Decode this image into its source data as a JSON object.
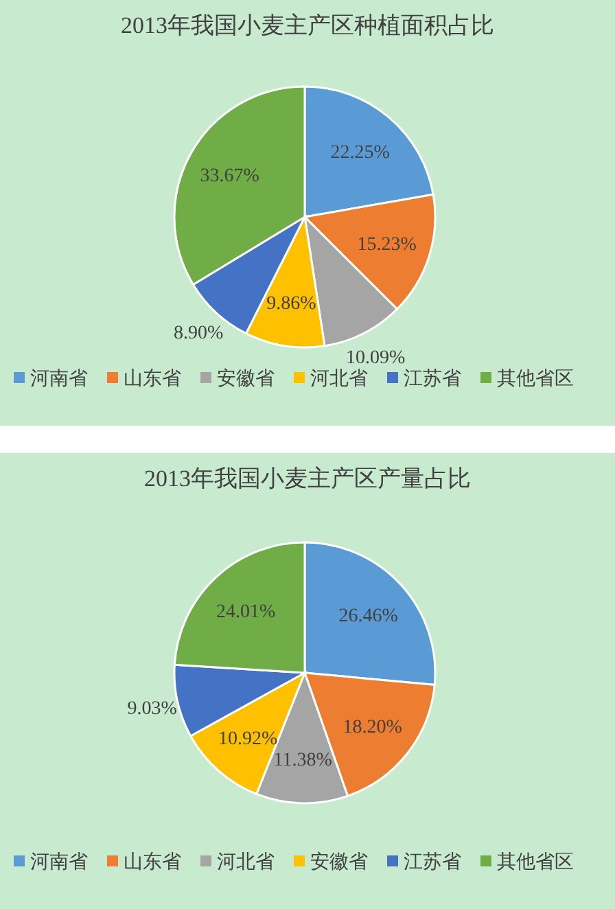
{
  "chart_data": [
    {
      "type": "pie",
      "title": "2013年我国小麦主产区种植面积占比",
      "categories": [
        "河南省",
        "山东省",
        "安徽省",
        "河北省",
        "江苏省",
        "其他省区"
      ],
      "values": [
        22.25,
        15.23,
        10.09,
        9.86,
        8.9,
        33.67
      ],
      "value_labels": [
        "22.25%",
        "15.23%",
        "10.09%",
        "9.86%",
        "8.90%",
        "33.67%"
      ],
      "colors": [
        "#5b9bd5",
        "#ed7d31",
        "#a5a5a5",
        "#ffc000",
        "#4472c4",
        "#70ad47"
      ],
      "legend": "bottom"
    },
    {
      "type": "pie",
      "title": "2013年我国小麦主产区产量占比",
      "categories": [
        "河南省",
        "山东省",
        "河北省",
        "安徽省",
        "江苏省",
        "其他省区"
      ],
      "values": [
        26.46,
        18.2,
        11.38,
        10.92,
        9.03,
        24.01
      ],
      "value_labels": [
        "26.46%",
        "18.20%",
        "11.38%",
        "10.92%",
        "9.03%",
        "24.01%"
      ],
      "colors": [
        "#5b9bd5",
        "#ed7d31",
        "#a5a5a5",
        "#ffc000",
        "#4472c4",
        "#70ad47"
      ],
      "legend": "bottom"
    }
  ]
}
